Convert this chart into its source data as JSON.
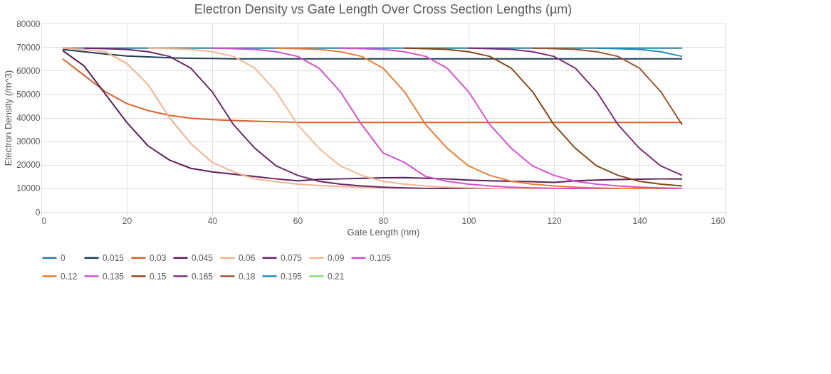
{
  "chart_data": {
    "type": "line",
    "title": "Electron Density vs Gate Length Over Cross Section Lengths (µm)",
    "xlabel": "Gate Length (nm)",
    "ylabel": "Electron Density (/m^3)",
    "x": [
      5,
      10,
      15,
      20,
      25,
      30,
      35,
      40,
      45,
      50,
      55,
      60,
      65,
      70,
      75,
      80,
      85,
      90,
      95,
      100,
      105,
      110,
      115,
      120,
      125,
      130,
      135,
      140,
      145,
      150
    ],
    "xlim": [
      0,
      160
    ],
    "xticks": [
      0,
      20,
      40,
      60,
      80,
      100,
      120,
      140,
      160
    ],
    "ylim": [
      0,
      80000
    ],
    "yticks": [
      0,
      10000,
      20000,
      30000,
      40000,
      50000,
      60000,
      70000,
      80000
    ],
    "grid": true,
    "legend": "bottom",
    "line_style": "solid",
    "series": [
      {
        "name": "0",
        "color": "#2f7fa3",
        "values": [
          69500,
          69500,
          69500,
          69500,
          69500,
          69500,
          69500,
          69500,
          69500,
          69500,
          69500,
          69500,
          69500,
          69500,
          69500,
          69500,
          69500,
          69500,
          69500,
          69500,
          69500,
          69500,
          69500,
          69500,
          69500,
          69500,
          69500,
          69500,
          69500,
          69500
        ]
      },
      {
        "name": "0.015",
        "color": "#1b3f55",
        "values": [
          69000,
          68000,
          67000,
          66200,
          65800,
          65400,
          65200,
          65100,
          65000,
          65000,
          65000,
          65000,
          65000,
          65000,
          65000,
          65000,
          65000,
          65000,
          65000,
          65000,
          65000,
          65000,
          65000,
          65000,
          65000,
          65000,
          65000,
          65000,
          65000,
          65000
        ]
      },
      {
        "name": "0.03",
        "color": "#d9622b",
        "values": [
          65000,
          58000,
          51000,
          46000,
          43000,
          41000,
          39800,
          39200,
          38800,
          38500,
          38300,
          38000,
          38000,
          38000,
          38000,
          38000,
          38000,
          38000,
          38000,
          38000,
          38000,
          38000,
          38000,
          38000,
          38000,
          38000,
          38000,
          38000,
          38000,
          38000
        ]
      },
      {
        "name": "0.045",
        "color": "#5c1f5a",
        "values": [
          68500,
          62000,
          50000,
          38000,
          28000,
          22000,
          18500,
          17000,
          16000,
          15000,
          14000,
          13200,
          13800,
          14000,
          14300,
          14500,
          14600,
          14300,
          14000,
          13500,
          13200,
          13000,
          12800,
          12500,
          13200,
          13500,
          13700,
          13900,
          14000,
          14000
        ]
      },
      {
        "name": "0.06",
        "color": "#f4b18e",
        "values": [
          69500,
          69000,
          68000,
          63000,
          54000,
          40000,
          29000,
          21000,
          17000,
          14000,
          12800,
          11800,
          11200,
          10800,
          10500,
          10300,
          10200,
          null,
          null,
          null,
          null,
          null,
          null,
          null,
          null,
          null,
          null,
          null,
          null,
          null
        ]
      },
      {
        "name": "0.075",
        "color": "#6b2569",
        "values": [
          null,
          69500,
          69300,
          69000,
          68000,
          66000,
          61000,
          51000,
          37000,
          27000,
          19500,
          15500,
          13000,
          11800,
          11000,
          10500,
          10200,
          10000,
          10000,
          10000,
          10000,
          null,
          null,
          null,
          null,
          null,
          null,
          null,
          null,
          null
        ]
      },
      {
        "name": "0.09",
        "color": "#f5b893",
        "values": [
          null,
          null,
          null,
          null,
          69500,
          69300,
          69000,
          68000,
          66000,
          61000,
          51000,
          37000,
          27000,
          19500,
          15500,
          13000,
          11800,
          11000,
          10500,
          10200,
          10000,
          10000,
          10000,
          10000,
          null,
          null,
          null,
          null,
          null,
          null
        ]
      },
      {
        "name": "0.105",
        "color": "#d24fd0",
        "values": [
          null,
          null,
          null,
          null,
          null,
          null,
          null,
          69500,
          69300,
          69000,
          68000,
          66000,
          61000,
          51000,
          37000,
          25000,
          21000,
          15000,
          13000,
          11800,
          11000,
          10500,
          10200,
          10000,
          10000,
          10000,
          10000,
          null,
          null,
          null
        ]
      },
      {
        "name": "0.12",
        "color": "#ed7d31",
        "values": [
          null,
          null,
          null,
          null,
          null,
          null,
          null,
          null,
          null,
          null,
          69500,
          69300,
          69000,
          68000,
          66000,
          61000,
          51000,
          37000,
          27000,
          19500,
          15500,
          13000,
          11800,
          11000,
          10500,
          10200,
          10000,
          10000,
          10000,
          10000
        ]
      },
      {
        "name": "0.135",
        "color": "#d94fd6",
        "values": [
          null,
          null,
          null,
          null,
          null,
          null,
          null,
          null,
          null,
          null,
          null,
          null,
          null,
          69500,
          69300,
          69000,
          68000,
          66000,
          61000,
          51000,
          37000,
          27000,
          19500,
          15500,
          13000,
          11800,
          11000,
          10500,
          10200,
          10000
        ]
      },
      {
        "name": "0.15",
        "color": "#8b4513",
        "values": [
          null,
          null,
          null,
          null,
          null,
          null,
          null,
          null,
          null,
          null,
          null,
          null,
          null,
          null,
          null,
          null,
          69500,
          69300,
          69000,
          68000,
          66000,
          61000,
          51000,
          37000,
          27000,
          19500,
          15500,
          13000,
          11800,
          11000
        ]
      },
      {
        "name": "0.165",
        "color": "#7b2c7a",
        "values": [
          null,
          null,
          null,
          null,
          null,
          null,
          null,
          null,
          null,
          null,
          null,
          null,
          null,
          null,
          null,
          null,
          null,
          null,
          null,
          69500,
          69300,
          69000,
          68000,
          66000,
          61000,
          51000,
          37000,
          27000,
          19500,
          15500
        ]
      },
      {
        "name": "0.18",
        "color": "#a0522d",
        "values": [
          null,
          null,
          null,
          null,
          null,
          null,
          null,
          null,
          null,
          null,
          null,
          null,
          null,
          null,
          null,
          null,
          null,
          null,
          null,
          null,
          null,
          null,
          69500,
          69300,
          69000,
          68000,
          66000,
          61000,
          51000,
          37000
        ]
      },
      {
        "name": "0.195",
        "color": "#1c8cc0",
        "values": [
          null,
          null,
          null,
          null,
          null,
          null,
          null,
          null,
          null,
          null,
          null,
          null,
          null,
          null,
          null,
          null,
          null,
          null,
          null,
          null,
          null,
          null,
          null,
          null,
          null,
          69500,
          69300,
          69000,
          68000,
          66000
        ]
      },
      {
        "name": "0.21",
        "color": "#7fdc6f",
        "values": [
          null,
          null,
          null,
          null,
          null,
          null,
          null,
          null,
          null,
          null,
          null,
          null,
          null,
          null,
          null,
          null,
          null,
          null,
          null,
          null,
          null,
          null,
          null,
          null,
          null,
          null,
          null,
          null,
          null,
          null
        ]
      }
    ]
  }
}
